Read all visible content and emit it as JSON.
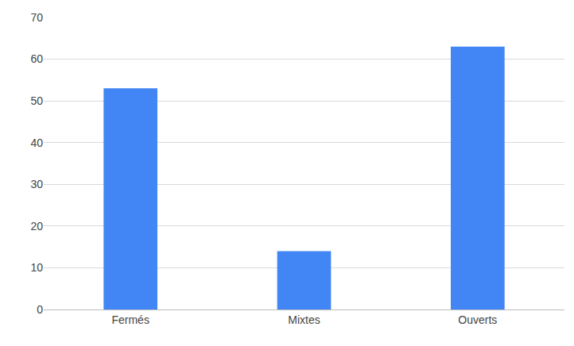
{
  "chart_data": {
    "type": "bar",
    "categories": [
      "Fermés",
      "Mixtes",
      "Ouverts"
    ],
    "values": [
      53,
      14,
      63
    ],
    "color": "#4285f4",
    "ylim": [
      0,
      70
    ],
    "yticks": [
      0,
      10,
      20,
      30,
      40,
      50,
      60,
      70
    ],
    "grid": true
  }
}
